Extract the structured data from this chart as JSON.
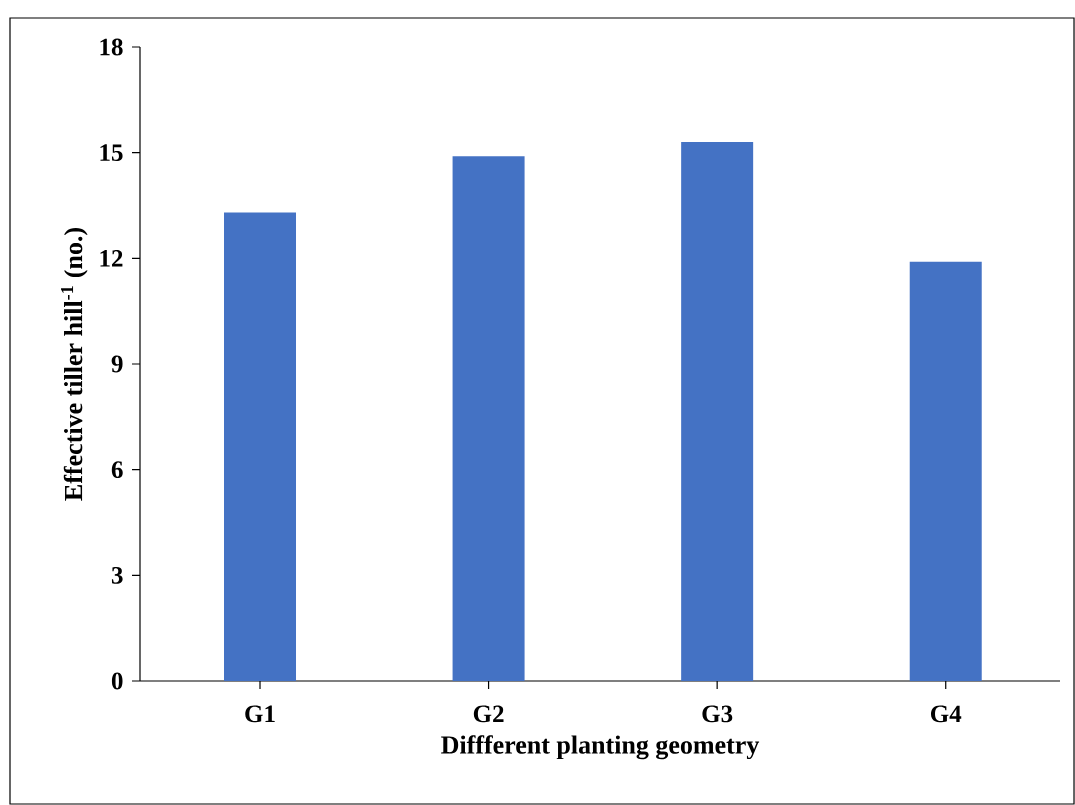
{
  "chart_data": {
    "type": "bar",
    "xlabel": "Diffferent planting geometry",
    "ylabel": "Effective tiller hill$^{-1}$ (no.)",
    "categories": [
      "G1",
      "G2",
      "G3",
      "G4"
    ],
    "values": [
      13.3,
      14.9,
      15.3,
      11.9
    ],
    "color": "#4472c4",
    "ylim": [
      0,
      18
    ],
    "yticks": [
      0,
      3,
      6,
      9,
      12,
      15,
      18
    ]
  }
}
